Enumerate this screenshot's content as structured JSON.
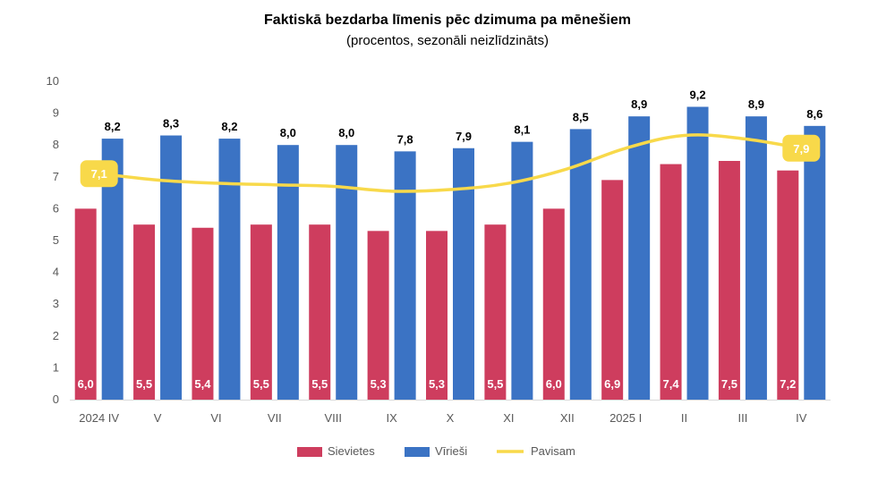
{
  "chart_data": {
    "type": "bar",
    "title": "Faktiskā bezdarba līmenis pēc dzimuma pa mēnešiem",
    "subtitle": "(procentos, sezonāli neizlīdzināts)",
    "categories": [
      "2024 IV",
      "V",
      "VI",
      "VII",
      "VIII",
      "IX",
      "X",
      "XI",
      "XII",
      "2025 I",
      "II",
      "III",
      "IV"
    ],
    "series": [
      {
        "name": "Sievietes",
        "kind": "bar",
        "color": "#CE3D5E",
        "values": [
          6.0,
          5.5,
          5.4,
          5.5,
          5.5,
          5.3,
          5.3,
          5.5,
          6.0,
          6.9,
          7.4,
          7.5,
          7.2
        ],
        "labels": [
          "6,0",
          "5,5",
          "5,4",
          "5,5",
          "5,5",
          "5,3",
          "5,3",
          "5,5",
          "6,0",
          "6,9",
          "7,4",
          "7,5",
          "7,2"
        ]
      },
      {
        "name": "Vīrieši",
        "kind": "bar",
        "color": "#3B73C4",
        "values": [
          8.2,
          8.3,
          8.2,
          8.0,
          8.0,
          7.8,
          7.9,
          8.1,
          8.5,
          8.9,
          9.2,
          8.9,
          8.6
        ],
        "labels": [
          "8,2",
          "8,3",
          "8,2",
          "8,0",
          "8,0",
          "7,8",
          "7,9",
          "8,1",
          "8,5",
          "8,9",
          "9,2",
          "8,9",
          "8,6"
        ]
      },
      {
        "name": "Pavisam",
        "kind": "line",
        "color": "#F8D94A",
        "values": [
          7.1,
          6.9,
          6.8,
          6.75,
          6.7,
          6.55,
          6.6,
          6.8,
          7.25,
          7.9,
          8.3,
          8.2,
          7.9
        ],
        "callouts": [
          {
            "index": 0,
            "label": "7,1"
          },
          {
            "index": 12,
            "label": "7,9"
          }
        ]
      }
    ],
    "yticks": [
      "0",
      "1",
      "2",
      "3",
      "4",
      "5",
      "6",
      "7",
      "8",
      "9",
      "10"
    ],
    "ylim": [
      0,
      10
    ],
    "xlabel": "",
    "ylabel": "",
    "grid": false,
    "legend": {
      "position": "bottom",
      "items": [
        "Sievietes",
        "Vīrieši",
        "Pavisam"
      ]
    }
  }
}
